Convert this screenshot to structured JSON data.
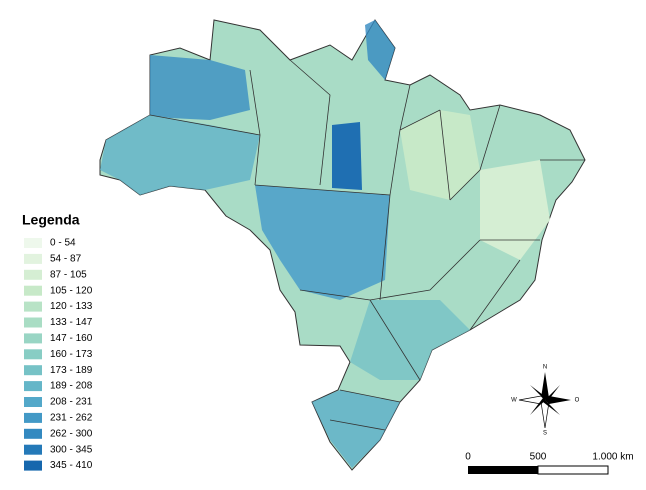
{
  "legend": {
    "title": "Legenda",
    "items": [
      {
        "label": "0 - 54",
        "color": "#eef8ec"
      },
      {
        "label": "54 - 87",
        "color": "#e2f3df"
      },
      {
        "label": "87 - 105",
        "color": "#d5eed3"
      },
      {
        "label": "105 - 120",
        "color": "#c7e9c8"
      },
      {
        "label": "120 - 133",
        "color": "#b8e3c6"
      },
      {
        "label": "133 - 147",
        "color": "#a9ddc4"
      },
      {
        "label": "147 - 160",
        "color": "#99d5c4"
      },
      {
        "label": "160 - 173",
        "color": "#88cdc4"
      },
      {
        "label": "173 - 189",
        "color": "#76c2c6"
      },
      {
        "label": "189 - 208",
        "color": "#65b6c8"
      },
      {
        "label": "208 - 231",
        "color": "#53a8c9"
      },
      {
        "label": "231 - 262",
        "color": "#4399c6"
      },
      {
        "label": "262 - 300",
        "color": "#3389c0"
      },
      {
        "label": "300 - 345",
        "color": "#2479b8"
      },
      {
        "label": "345 - 410",
        "color": "#1667ad"
      }
    ]
  },
  "scale_bar": {
    "labels": [
      "0",
      "500",
      "1.000 km"
    ]
  },
  "compass": {
    "north": "N",
    "south": "S",
    "west": "W",
    "east": "O"
  }
}
